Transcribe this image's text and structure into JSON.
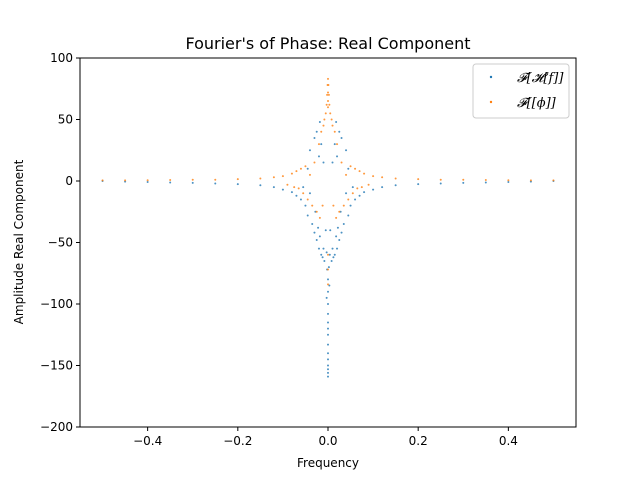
{
  "chart_data": {
    "type": "scatter",
    "title": "Fourier's of Phase: Real Component",
    "xlabel": "Frequency",
    "ylabel": "Amplitude Real Component",
    "xlim": [
      -0.55,
      0.55
    ],
    "ylim": [
      -200,
      100
    ],
    "xticks": [
      -0.4,
      -0.2,
      0.0,
      0.2,
      0.4
    ],
    "xtick_labels": [
      "−0.4",
      "−0.2",
      "0.0",
      "0.2",
      "0.4"
    ],
    "yticks": [
      -200,
      -150,
      -100,
      -50,
      0,
      50,
      100
    ],
    "ytick_labels": [
      "−200",
      "−150",
      "−100",
      "−50",
      "0",
      "50",
      "100"
    ],
    "grid": false,
    "legend": {
      "position": "top-right"
    },
    "series": [
      {
        "name": "𝓕[𝓗[f]]",
        "color": "#1f77b4",
        "marker": "point",
        "points": [
          [
            -0.5,
            0
          ],
          [
            -0.45,
            -0.5
          ],
          [
            -0.4,
            -0.8
          ],
          [
            -0.35,
            -1.2
          ],
          [
            -0.3,
            -1.5
          ],
          [
            -0.25,
            -2
          ],
          [
            -0.2,
            -2.5
          ],
          [
            -0.15,
            -3.5
          ],
          [
            -0.12,
            -5
          ],
          [
            -0.1,
            -7
          ],
          [
            -0.08,
            -9
          ],
          [
            -0.07,
            -12
          ],
          [
            -0.06,
            -15
          ],
          [
            -0.055,
            -5
          ],
          [
            -0.05,
            -20
          ],
          [
            -0.045,
            -28
          ],
          [
            -0.04,
            -10
          ],
          [
            -0.035,
            -35
          ],
          [
            -0.03,
            -42
          ],
          [
            -0.028,
            -25
          ],
          [
            -0.025,
            -48
          ],
          [
            -0.022,
            -38
          ],
          [
            -0.02,
            -55
          ],
          [
            -0.018,
            -45
          ],
          [
            -0.015,
            -60
          ],
          [
            -0.012,
            -62
          ],
          [
            -0.01,
            -55
          ],
          [
            -0.008,
            -65
          ],
          [
            -0.005,
            -40
          ],
          [
            -0.003,
            -58
          ],
          [
            -0.02,
            20
          ],
          [
            -0.03,
            35
          ],
          [
            -0.025,
            40
          ],
          [
            -0.018,
            48
          ],
          [
            -0.015,
            30
          ],
          [
            -0.01,
            15
          ],
          [
            -0.04,
            25
          ],
          [
            -0.045,
            10
          ],
          [
            0.0,
            -80
          ],
          [
            0.0,
            -90
          ],
          [
            0.0,
            -100
          ],
          [
            0.0,
            -108
          ],
          [
            0.0,
            -115
          ],
          [
            0.0,
            -120
          ],
          [
            0.0,
            -125
          ],
          [
            0.0,
            -133
          ],
          [
            0.0,
            -140
          ],
          [
            0.0,
            -145
          ],
          [
            0.0,
            -150
          ],
          [
            0.0,
            -153
          ],
          [
            0.0,
            -156
          ],
          [
            0.0,
            -159
          ],
          [
            0.002,
            -70
          ],
          [
            -0.002,
            -72
          ],
          [
            0.004,
            -60
          ],
          [
            0.003,
            -85
          ],
          [
            -0.003,
            -95
          ],
          [
            0.005,
            -40
          ],
          [
            0.008,
            -65
          ],
          [
            0.01,
            -55
          ],
          [
            0.012,
            -62
          ],
          [
            0.015,
            -60
          ],
          [
            0.018,
            -45
          ],
          [
            0.02,
            -55
          ],
          [
            0.022,
            -38
          ],
          [
            0.025,
            -48
          ],
          [
            0.028,
            -25
          ],
          [
            0.03,
            -42
          ],
          [
            0.035,
            -35
          ],
          [
            0.04,
            -10
          ],
          [
            0.045,
            -28
          ],
          [
            0.05,
            -20
          ],
          [
            0.055,
            -5
          ],
          [
            0.06,
            -15
          ],
          [
            0.07,
            -12
          ],
          [
            0.08,
            -9
          ],
          [
            0.1,
            -7
          ],
          [
            0.02,
            20
          ],
          [
            0.03,
            35
          ],
          [
            0.025,
            40
          ],
          [
            0.018,
            48
          ],
          [
            0.015,
            30
          ],
          [
            0.01,
            15
          ],
          [
            0.04,
            25
          ],
          [
            0.045,
            10
          ],
          [
            0.12,
            -5
          ],
          [
            0.15,
            -3.5
          ],
          [
            0.2,
            -2.5
          ],
          [
            0.25,
            -2
          ],
          [
            0.3,
            -1.5
          ],
          [
            0.35,
            -1.2
          ],
          [
            0.4,
            -0.8
          ],
          [
            0.45,
            -0.5
          ],
          [
            0.5,
            0
          ]
        ]
      },
      {
        "name": "𝓕[[ϕ]]",
        "color": "#ff7f0e",
        "marker": "point",
        "points": [
          [
            -0.5,
            0.5
          ],
          [
            -0.45,
            0.5
          ],
          [
            -0.4,
            0.6
          ],
          [
            -0.35,
            0.8
          ],
          [
            -0.3,
            1
          ],
          [
            -0.25,
            1
          ],
          [
            -0.2,
            1.5
          ],
          [
            -0.15,
            2
          ],
          [
            -0.12,
            3
          ],
          [
            -0.1,
            4
          ],
          [
            -0.09,
            -3
          ],
          [
            -0.08,
            6
          ],
          [
            -0.075,
            -5
          ],
          [
            -0.07,
            8
          ],
          [
            -0.065,
            -6
          ],
          [
            -0.06,
            10
          ],
          [
            -0.055,
            -10
          ],
          [
            -0.05,
            12
          ],
          [
            -0.045,
            -15
          ],
          [
            -0.04,
            5
          ],
          [
            -0.035,
            -20
          ],
          [
            -0.03,
            15
          ],
          [
            -0.025,
            -25
          ],
          [
            -0.02,
            30
          ],
          [
            -0.018,
            -30
          ],
          [
            -0.015,
            40
          ],
          [
            -0.012,
            -20
          ],
          [
            -0.01,
            45
          ],
          [
            -0.008,
            50
          ],
          [
            -0.005,
            55
          ],
          [
            -0.003,
            62
          ],
          [
            -0.002,
            70
          ],
          [
            -0.001,
            78
          ],
          [
            0.0,
            83
          ],
          [
            0.0,
            72
          ],
          [
            0.0,
            -60
          ],
          [
            0.0,
            -72
          ],
          [
            0.0,
            -84
          ],
          [
            0.0,
            65
          ],
          [
            0.0,
            60
          ],
          [
            0.001,
            78
          ],
          [
            0.002,
            70
          ],
          [
            0.003,
            62
          ],
          [
            0.005,
            55
          ],
          [
            0.008,
            50
          ],
          [
            0.01,
            45
          ],
          [
            0.012,
            -20
          ],
          [
            0.015,
            40
          ],
          [
            0.018,
            -30
          ],
          [
            0.02,
            30
          ],
          [
            0.025,
            -25
          ],
          [
            0.03,
            15
          ],
          [
            0.035,
            -20
          ],
          [
            0.04,
            5
          ],
          [
            0.045,
            -15
          ],
          [
            0.05,
            12
          ],
          [
            0.055,
            -10
          ],
          [
            0.06,
            10
          ],
          [
            0.065,
            -6
          ],
          [
            0.07,
            8
          ],
          [
            0.075,
            -5
          ],
          [
            0.08,
            6
          ],
          [
            0.09,
            -3
          ],
          [
            0.1,
            4
          ],
          [
            0.12,
            3
          ],
          [
            0.15,
            2
          ],
          [
            0.2,
            1.5
          ],
          [
            0.25,
            1
          ],
          [
            0.3,
            1
          ],
          [
            0.35,
            0.8
          ],
          [
            0.4,
            0.6
          ],
          [
            0.45,
            0.5
          ],
          [
            0.5,
            0.5
          ]
        ]
      }
    ]
  }
}
